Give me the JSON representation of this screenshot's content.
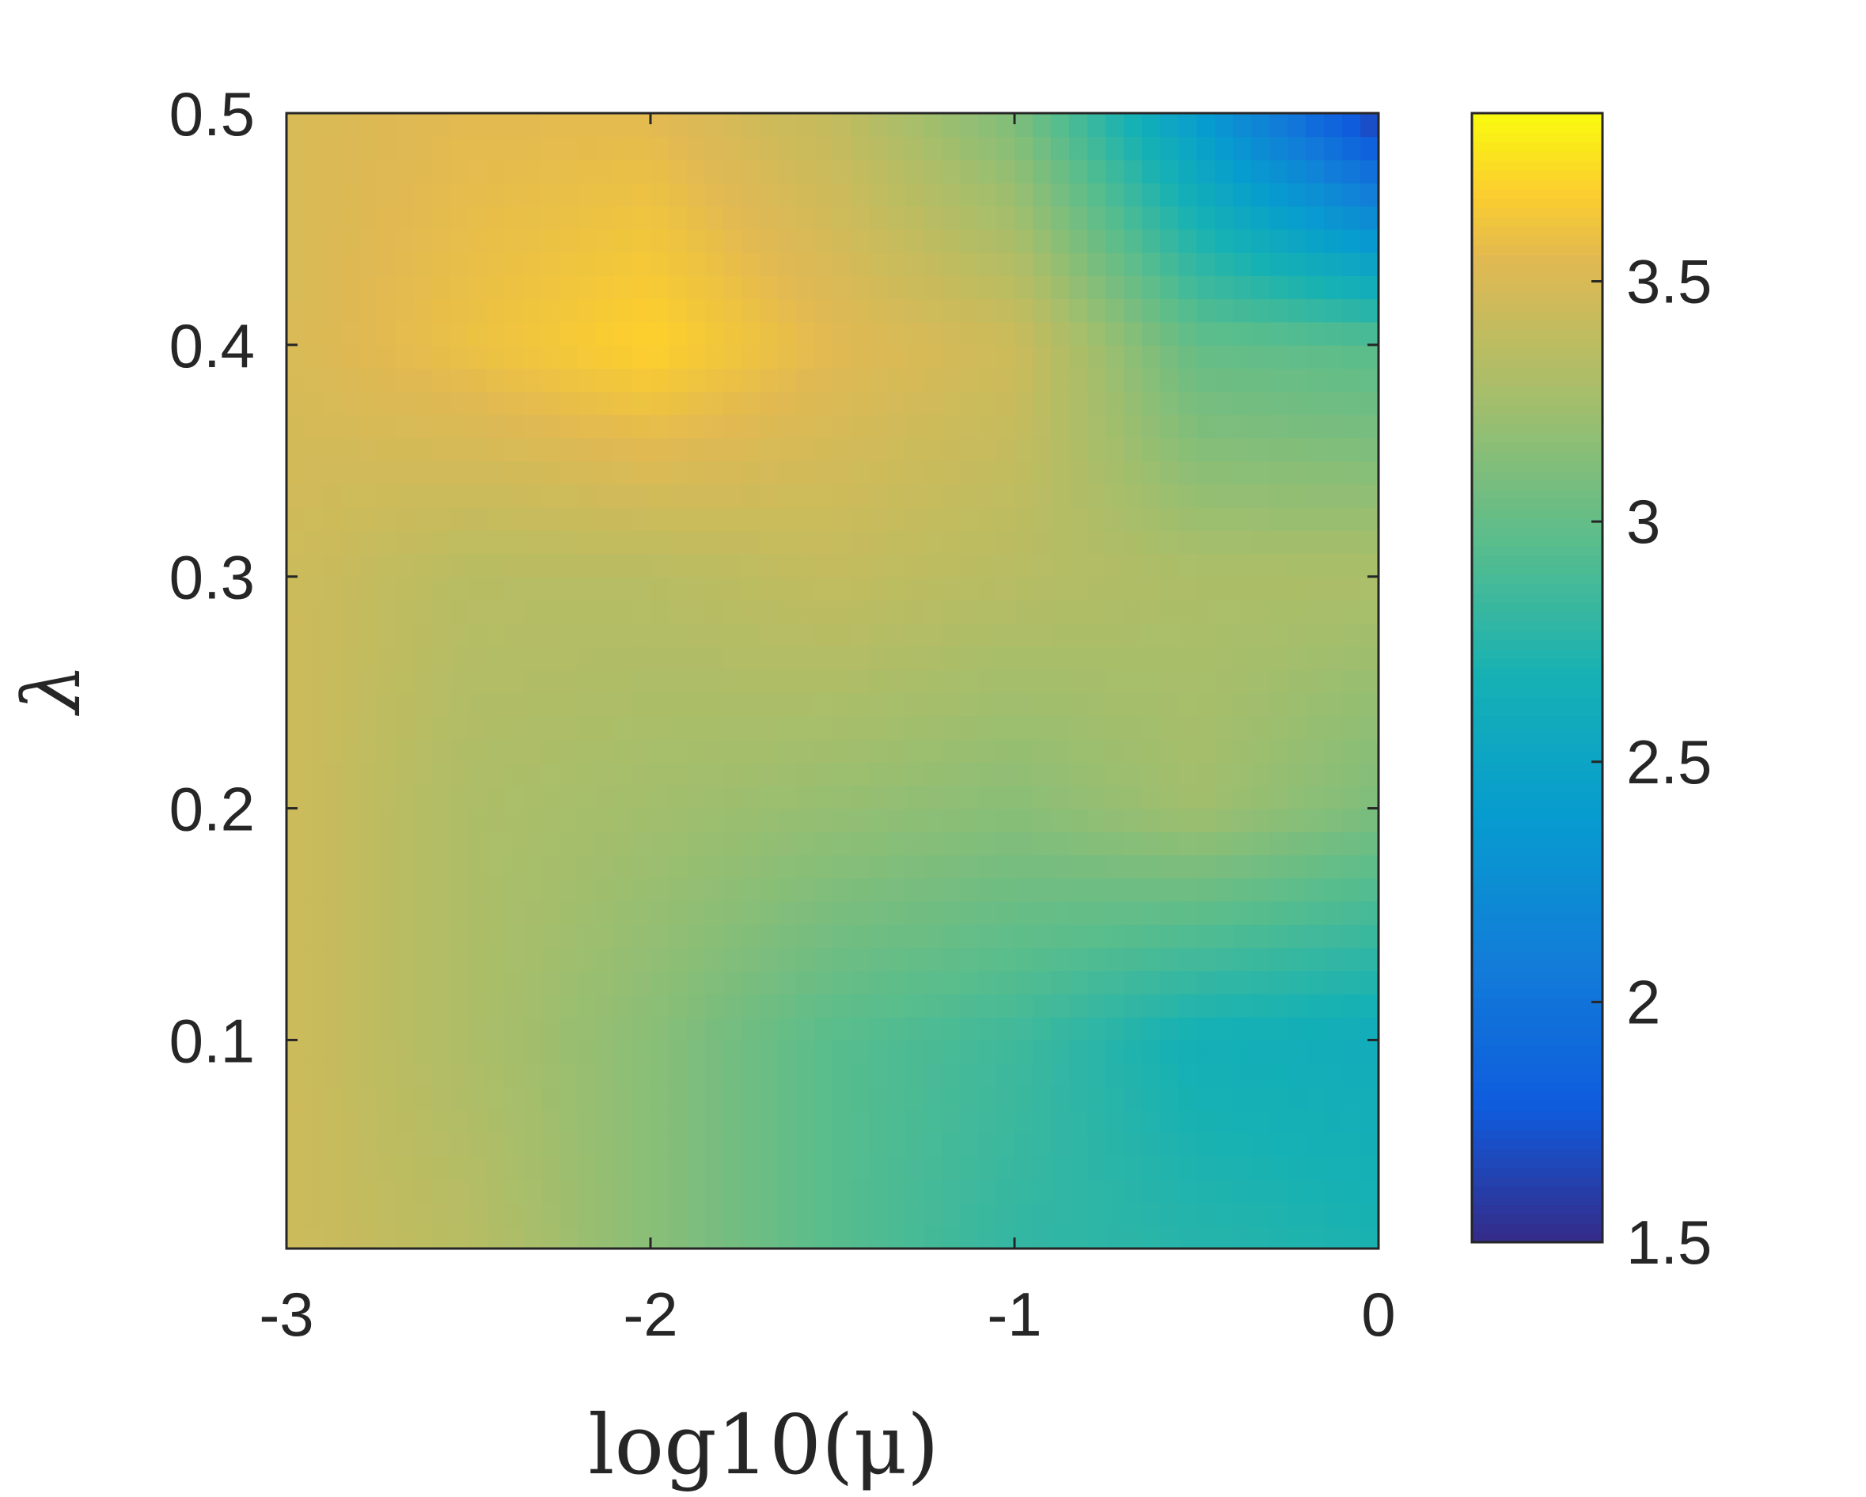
{
  "chart_data": {
    "type": "heatmap",
    "title": "",
    "xlabel": "log10(μ)",
    "ylabel": "λ",
    "xlim": [
      -3,
      0
    ],
    "ylim": [
      0.01,
      0.5
    ],
    "x_ticks": [
      -3,
      -2,
      -1,
      0
    ],
    "x_tick_labels": [
      "-3",
      "-2",
      "-1",
      "0"
    ],
    "y_ticks": [
      0.1,
      0.2,
      0.3,
      0.4,
      0.5
    ],
    "y_tick_labels": [
      "0.1",
      "0.2",
      "0.3",
      "0.4",
      "0.5"
    ],
    "colorbar": {
      "range": [
        1.5,
        3.85
      ],
      "ticks": [
        1.5,
        2,
        2.5,
        3,
        3.5
      ],
      "tick_labels": [
        "1.5",
        "2",
        "2.5",
        "3",
        "3.5"
      ],
      "colormap": "parula"
    },
    "x_grid": [
      -3,
      -2.5,
      -2,
      -1.5,
      -1,
      -0.5,
      0
    ],
    "y_grid": [
      0.01,
      0.1,
      0.2,
      0.3,
      0.4,
      0.5
    ],
    "z": [
      [
        3.45,
        3.35,
        3.15,
        2.95,
        2.8,
        2.75,
        2.7
      ],
      [
        3.45,
        3.3,
        3.15,
        2.95,
        2.85,
        2.65,
        2.6
      ],
      [
        3.45,
        3.3,
        3.25,
        3.2,
        3.15,
        3.25,
        3.1
      ],
      [
        3.45,
        3.35,
        3.35,
        3.4,
        3.35,
        3.3,
        3.3
      ],
      [
        3.5,
        3.6,
        3.7,
        3.55,
        3.45,
        3.0,
        2.95
      ],
      [
        3.5,
        3.55,
        3.55,
        3.4,
        3.1,
        2.4,
        1.6
      ]
    ]
  }
}
